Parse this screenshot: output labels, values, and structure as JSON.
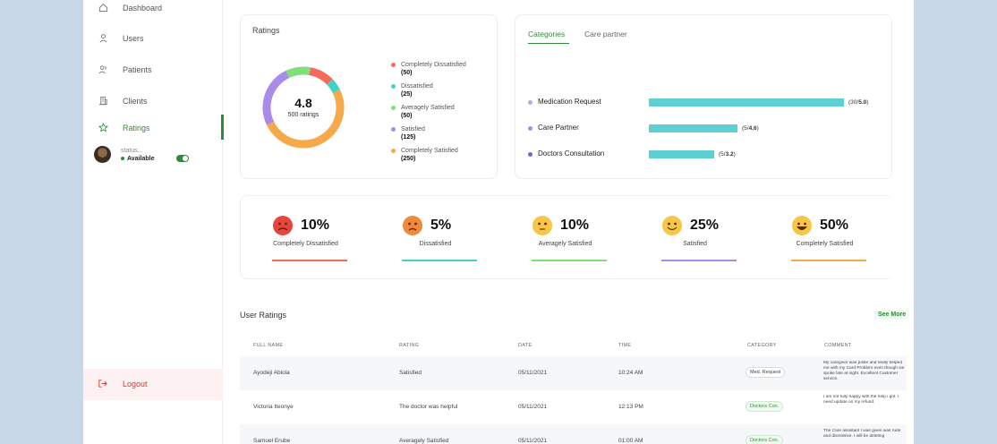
{
  "sidebar": {
    "items": [
      {
        "label": "Dashboard",
        "icon": "home-icon"
      },
      {
        "label": "Users",
        "icon": "user-icon"
      },
      {
        "label": "Patients",
        "icon": "users-icon"
      },
      {
        "label": "Clients",
        "icon": "building-icon"
      },
      {
        "label": "Ratings",
        "icon": "star-icon",
        "active": true
      }
    ],
    "status": {
      "label": "status...",
      "value": "Available",
      "toggle_on": true
    },
    "logout": "Logout"
  },
  "ratings": {
    "title": "Ratings",
    "center_value": "4.8",
    "center_sub": "500 ratings",
    "legend": [
      {
        "name": "Completely Dissatisfied",
        "count": "(50)",
        "color": "#f26b5b"
      },
      {
        "name": "Dissatisfied",
        "count": "(25)",
        "color": "#42d3c5"
      },
      {
        "name": "Averagely Satisfied",
        "count": "(50)",
        "color": "#7fe07a"
      },
      {
        "name": "Satisfied",
        "count": "(125)",
        "color": "#a98be8"
      },
      {
        "name": "Completely Satisfied",
        "count": "(250)",
        "color": "#f5a94b"
      }
    ]
  },
  "categories": {
    "tabs": [
      "Categories",
      "Care partner"
    ],
    "items": [
      {
        "name": "Medication Request",
        "value_label": "(30/",
        "value_bold": "5.0",
        "value_end": ")",
        "ratio": 1.0,
        "color": "#b9a8ea"
      },
      {
        "name": "Care Partner",
        "value_label": "(5/",
        "value_bold": "4.6",
        "value_end": ")",
        "ratio": 0.455,
        "color": "#a98be8"
      },
      {
        "name": "Doctors Consultation",
        "value_label": "(5/",
        "value_bold": "3.2",
        "value_end": ")",
        "ratio": 0.335,
        "color": "#7d62c9"
      }
    ],
    "bar_color": "#5ecfd2"
  },
  "satisfaction": [
    {
      "pct": "10%",
      "label": "Completely Dissatisfied",
      "face": "#e8453c",
      "line": "#f26b5b"
    },
    {
      "pct": "5%",
      "label": "Dissatisfied",
      "face": "#f08a3a",
      "line": "#42d3c5"
    },
    {
      "pct": "10%",
      "label": "Averagely Satisfied",
      "face": "#f7c646",
      "line": "#7fe07a"
    },
    {
      "pct": "25%",
      "label": "Satisfied",
      "face": "#f7c646",
      "line": "#a98be8"
    },
    {
      "pct": "50%",
      "label": "Completely Satisfied",
      "face": "#f7c646",
      "line": "#f5a94b"
    }
  ],
  "user_ratings": {
    "title": "User Ratings",
    "see_more": "See More",
    "columns": [
      "FULL NAME",
      "RATING",
      "DATE",
      "TIME",
      "CATEGORY",
      "COMMENT"
    ],
    "rows": [
      {
        "name": "Ayodeji Abiola",
        "rating": "Satisfied",
        "date": "05/11/2021",
        "time": "10:24 AM",
        "category": "Med. Request",
        "cat_green": false,
        "comment": "My caregiver was polite and really helped me with my Card Problem even though we spoke late at night. Excellent Customer service."
      },
      {
        "name": "Victoria Iteonye",
        "rating": "The doctor was helpful",
        "date": "05/11/2021",
        "time": "12:13 PM",
        "category": "Doctors Con.",
        "cat_green": true,
        "comment": "I am not fully happy with the help i got. I need update on my refund."
      },
      {
        "name": "Samuel Erube",
        "rating": "Averagely Satisfied",
        "date": "05/11/2021",
        "time": "01:00 AM",
        "category": "Doctors Con.",
        "cat_green": true,
        "comment": "The Care assistant I was given was rude and dismissive. I will be deleting"
      }
    ]
  }
}
